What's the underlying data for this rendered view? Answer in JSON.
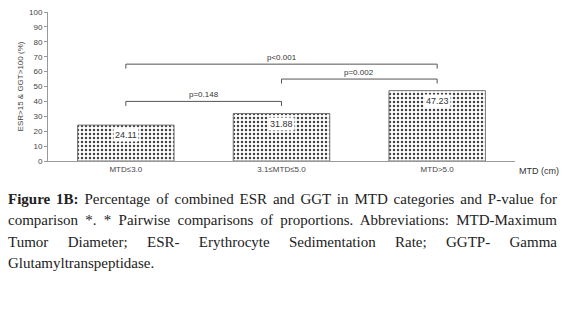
{
  "chart_data": {
    "type": "bar",
    "categories": [
      "MTD≤3.0",
      "3.1≤MTD≤5.0",
      "MTD>5.0"
    ],
    "values": [
      24.11,
      31.88,
      47.23
    ],
    "color": "#d9d9d9",
    "data_labels": true,
    "y_label": "ESR>15 & GGT>100 (%)",
    "x_label": "MTD (cm)",
    "ylim": [
      0,
      100
    ],
    "yticks": [
      0,
      10,
      20,
      30,
      40,
      50,
      60,
      70,
      80,
      90,
      100
    ],
    "grid": false,
    "comparisons": [
      {
        "from": "MTD≤3.0",
        "to": "3.1≤MTD≤5.0",
        "y": 40,
        "label": "p=0.148"
      },
      {
        "from": "3.1≤MTD≤5.0",
        "to": "MTD>5.0",
        "y": 55,
        "label": "p=0.002"
      },
      {
        "from": "MTD≤3.0",
        "to": "MTD>5.0",
        "y": 65,
        "label": "p<0.001"
      }
    ]
  },
  "caption": {
    "label": "Figure 1B:",
    "text": "Percentage of combined ESR and GGT in MTD categories and P-value for comparison *. * Pairwise comparisons of proportions. Abbreviations: MTD-Maximum Tumor Diameter; ESR- Erythrocyte Sedimentation Rate; GGTP- Gamma Glutamyltranspeptidase."
  }
}
